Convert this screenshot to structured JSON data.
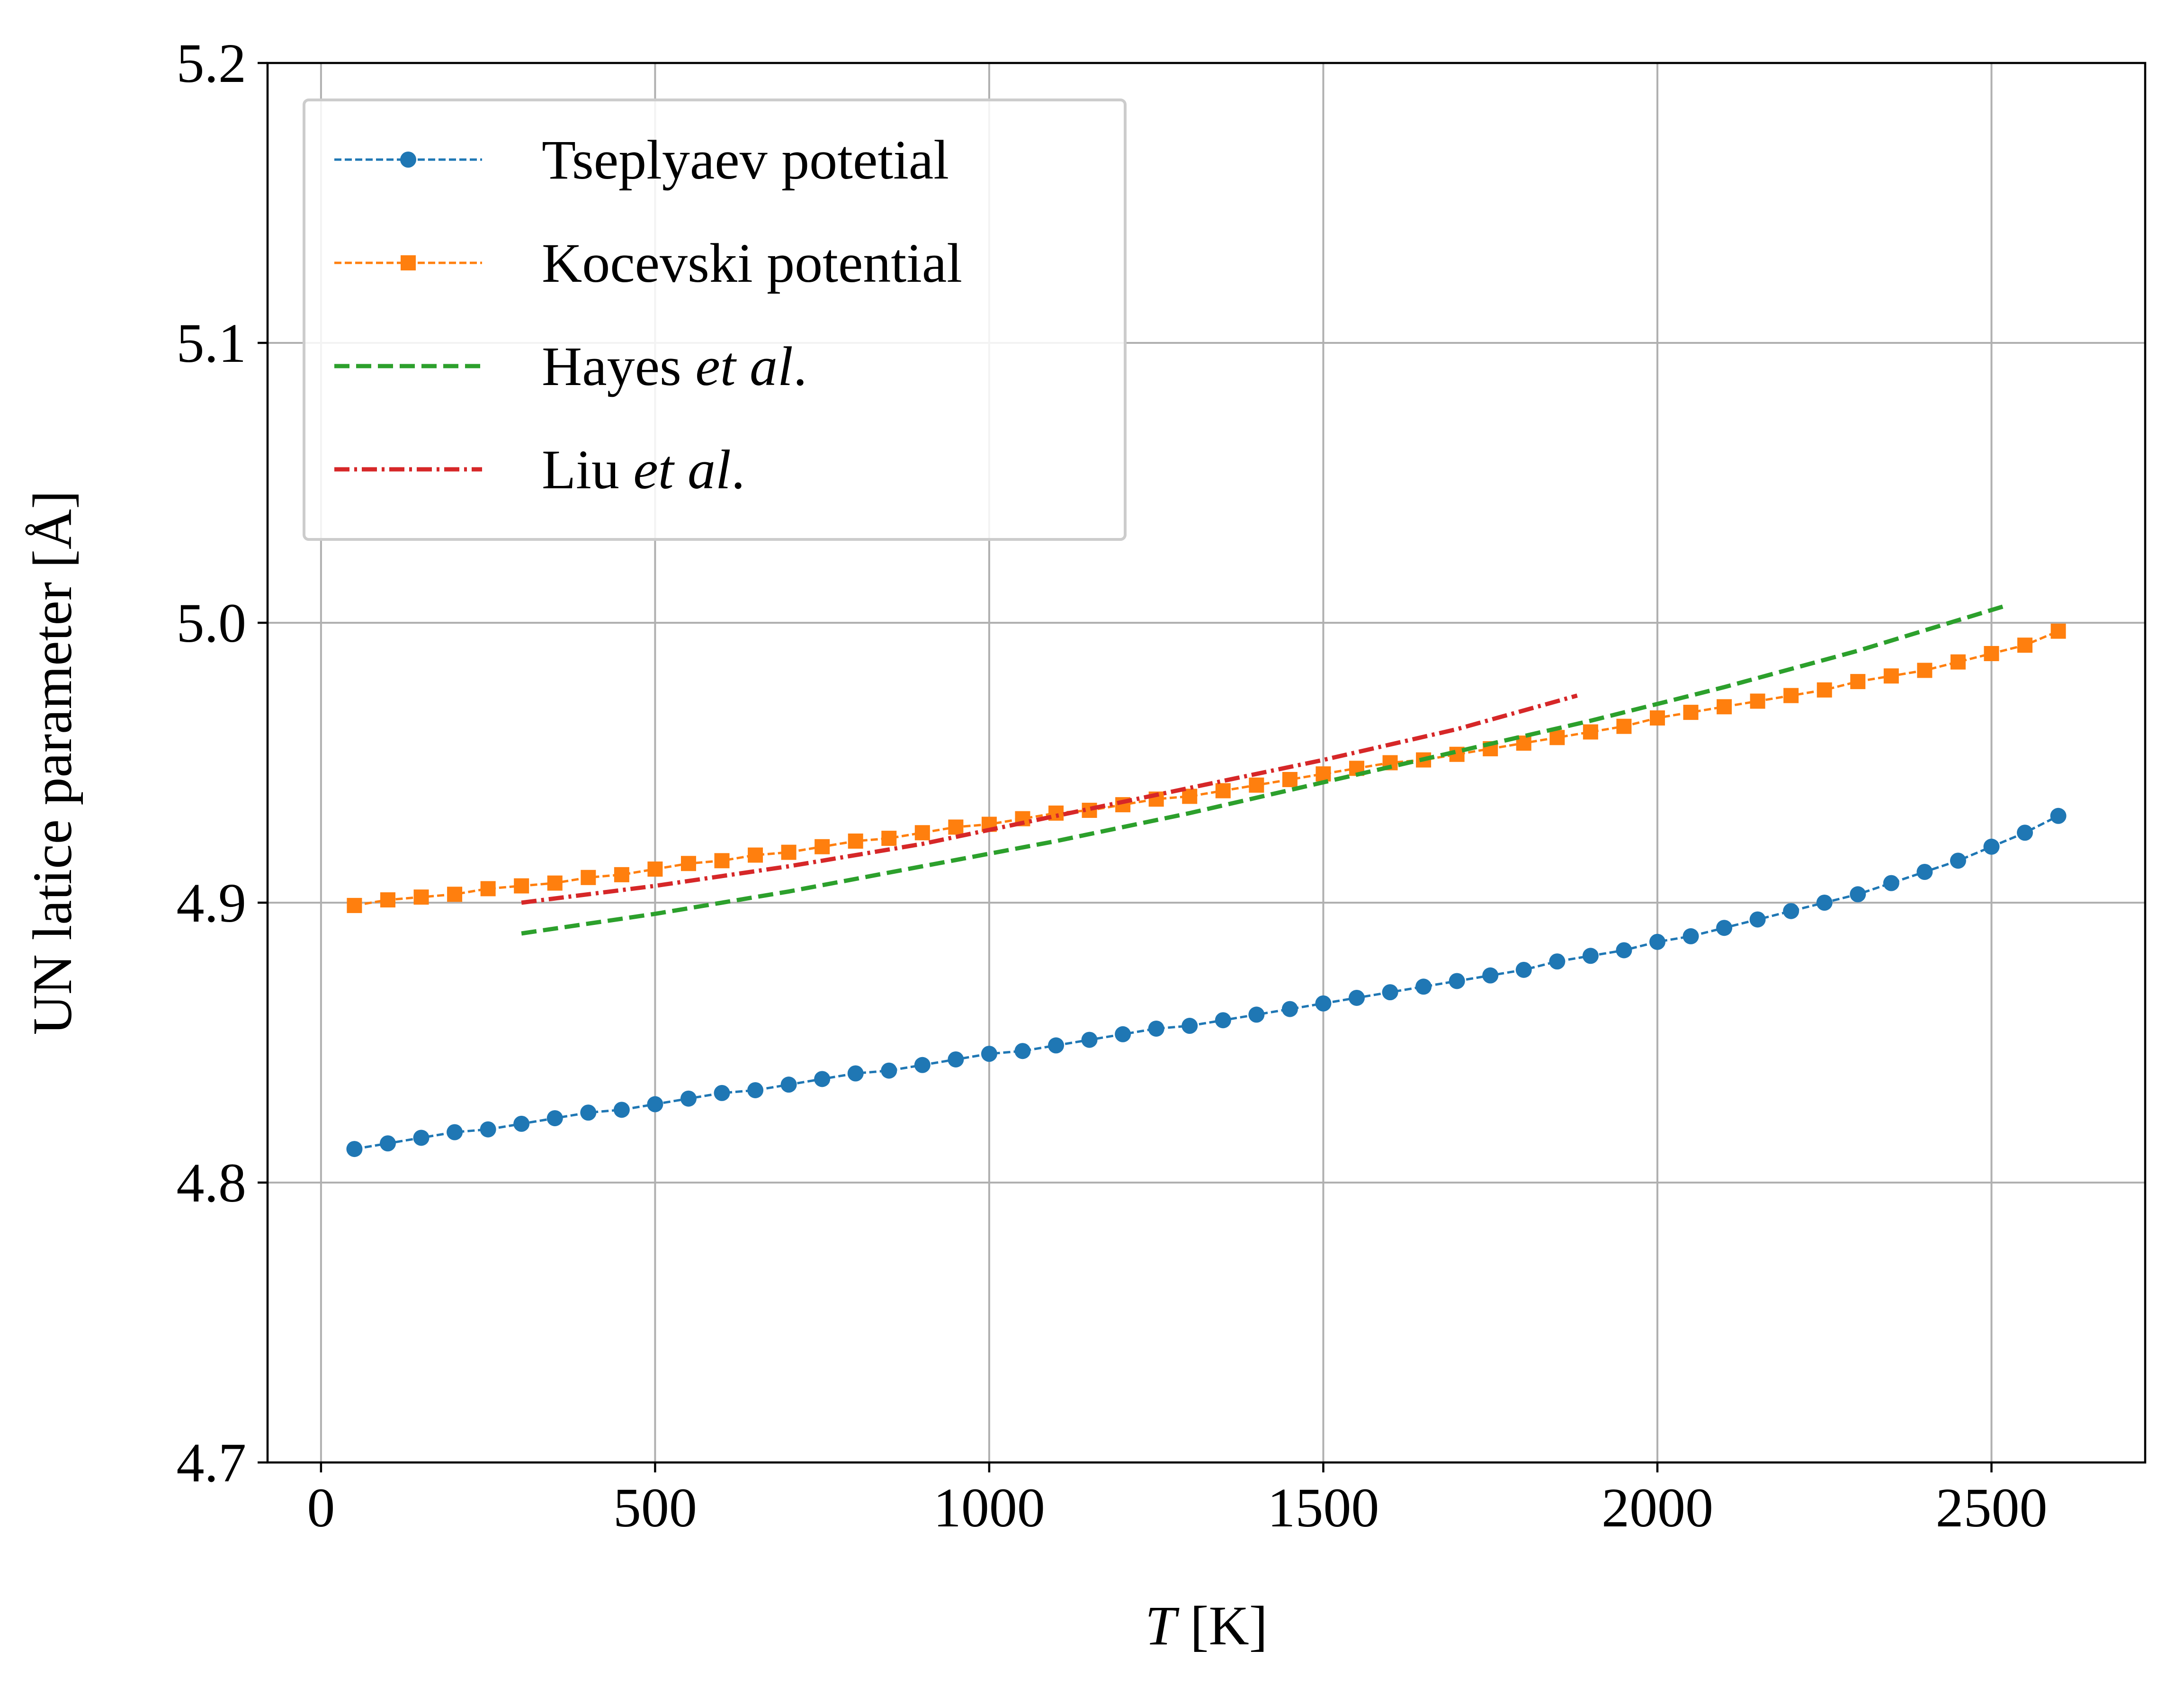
{
  "chart_data": {
    "type": "line",
    "xlabel": {
      "var": "T",
      "unit": " [K]"
    },
    "ylabel": "UN latice parameter [Å]",
    "xlim": [
      -80,
      2730
    ],
    "ylim": [
      4.7,
      5.2
    ],
    "xticks": [
      0,
      500,
      1000,
      1500,
      2000,
      2500
    ],
    "xtick_labels": [
      "0",
      "500",
      "1000",
      "1500",
      "2000",
      "2500"
    ],
    "yticks": [
      4.7,
      4.8,
      4.9,
      5.0,
      5.1,
      5.2
    ],
    "ytick_labels": [
      "4.7",
      "4.8",
      "4.9",
      "5.0",
      "5.1",
      "5.2"
    ],
    "grid": true,
    "legend_position": "top-left",
    "series": [
      {
        "name": "Tseplyaev potetial",
        "legend_parts": [
          {
            "text": "Tseplyaev potetial",
            "italic": false
          }
        ],
        "color": "#1f77b4",
        "line_style": "dashed",
        "marker": "circle",
        "x": [
          50,
          100,
          150,
          200,
          250,
          300,
          350,
          400,
          450,
          500,
          550,
          600,
          650,
          700,
          750,
          800,
          850,
          900,
          950,
          1000,
          1050,
          1100,
          1150,
          1200,
          1250,
          1300,
          1350,
          1400,
          1450,
          1500,
          1550,
          1600,
          1650,
          1700,
          1750,
          1800,
          1850,
          1900,
          1950,
          2000,
          2050,
          2100,
          2150,
          2200,
          2250,
          2300,
          2350,
          2400,
          2450,
          2500,
          2550,
          2600
        ],
        "y": [
          4.812,
          4.814,
          4.816,
          4.818,
          4.819,
          4.821,
          4.823,
          4.825,
          4.826,
          4.828,
          4.83,
          4.832,
          4.833,
          4.835,
          4.837,
          4.839,
          4.84,
          4.842,
          4.844,
          4.846,
          4.847,
          4.849,
          4.851,
          4.853,
          4.855,
          4.856,
          4.858,
          4.86,
          4.862,
          4.864,
          4.866,
          4.868,
          4.87,
          4.872,
          4.874,
          4.876,
          4.879,
          4.881,
          4.883,
          4.886,
          4.888,
          4.891,
          4.894,
          4.897,
          4.9,
          4.903,
          4.907,
          4.911,
          4.915,
          4.92,
          4.925,
          4.931
        ]
      },
      {
        "name": "Kocevski potential",
        "legend_parts": [
          {
            "text": "Kocevski potential",
            "italic": false
          }
        ],
        "color": "#ff7f0e",
        "line_style": "dashed",
        "marker": "square",
        "x": [
          50,
          100,
          150,
          200,
          250,
          300,
          350,
          400,
          450,
          500,
          550,
          600,
          650,
          700,
          750,
          800,
          850,
          900,
          950,
          1000,
          1050,
          1100,
          1150,
          1200,
          1250,
          1300,
          1350,
          1400,
          1450,
          1500,
          1550,
          1600,
          1650,
          1700,
          1750,
          1800,
          1850,
          1900,
          1950,
          2000,
          2050,
          2100,
          2150,
          2200,
          2250,
          2300,
          2350,
          2400,
          2450,
          2500,
          2550,
          2600
        ],
        "y": [
          4.899,
          4.901,
          4.902,
          4.903,
          4.905,
          4.906,
          4.907,
          4.909,
          4.91,
          4.912,
          4.914,
          4.915,
          4.917,
          4.918,
          4.92,
          4.922,
          4.923,
          4.925,
          4.927,
          4.928,
          4.93,
          4.932,
          4.933,
          4.935,
          4.937,
          4.938,
          4.94,
          4.942,
          4.944,
          4.946,
          4.948,
          4.95,
          4.951,
          4.953,
          4.955,
          4.957,
          4.959,
          4.961,
          4.963,
          4.966,
          4.968,
          4.97,
          4.972,
          4.974,
          4.976,
          4.979,
          4.981,
          4.983,
          4.986,
          4.989,
          4.992,
          4.997
        ]
      },
      {
        "name": "Hayes et al.",
        "legend_parts": [
          {
            "text": "Hayes ",
            "italic": false
          },
          {
            "text": "et al",
            "italic": true
          },
          {
            "text": ".",
            "italic": false
          }
        ],
        "color": "#2ca02c",
        "line_style": "dashed-long",
        "marker": "none",
        "x": [
          300,
          500,
          700,
          900,
          1100,
          1300,
          1500,
          1700,
          1900,
          2100,
          2300,
          2520
        ],
        "y": [
          4.889,
          4.896,
          4.904,
          4.913,
          4.922,
          4.932,
          4.943,
          4.954,
          4.965,
          4.977,
          4.99,
          5.006
        ]
      },
      {
        "name": "Liu et al.",
        "legend_parts": [
          {
            "text": "Liu ",
            "italic": false
          },
          {
            "text": "et al",
            "italic": true
          },
          {
            "text": ".",
            "italic": false
          }
        ],
        "color": "#d62728",
        "line_style": "dashdot",
        "marker": "none",
        "x": [
          300,
          500,
          700,
          900,
          1100,
          1300,
          1500,
          1700,
          1880
        ],
        "y": [
          4.9,
          4.906,
          4.913,
          4.921,
          4.931,
          4.941,
          4.951,
          4.962,
          4.974
        ]
      }
    ]
  }
}
